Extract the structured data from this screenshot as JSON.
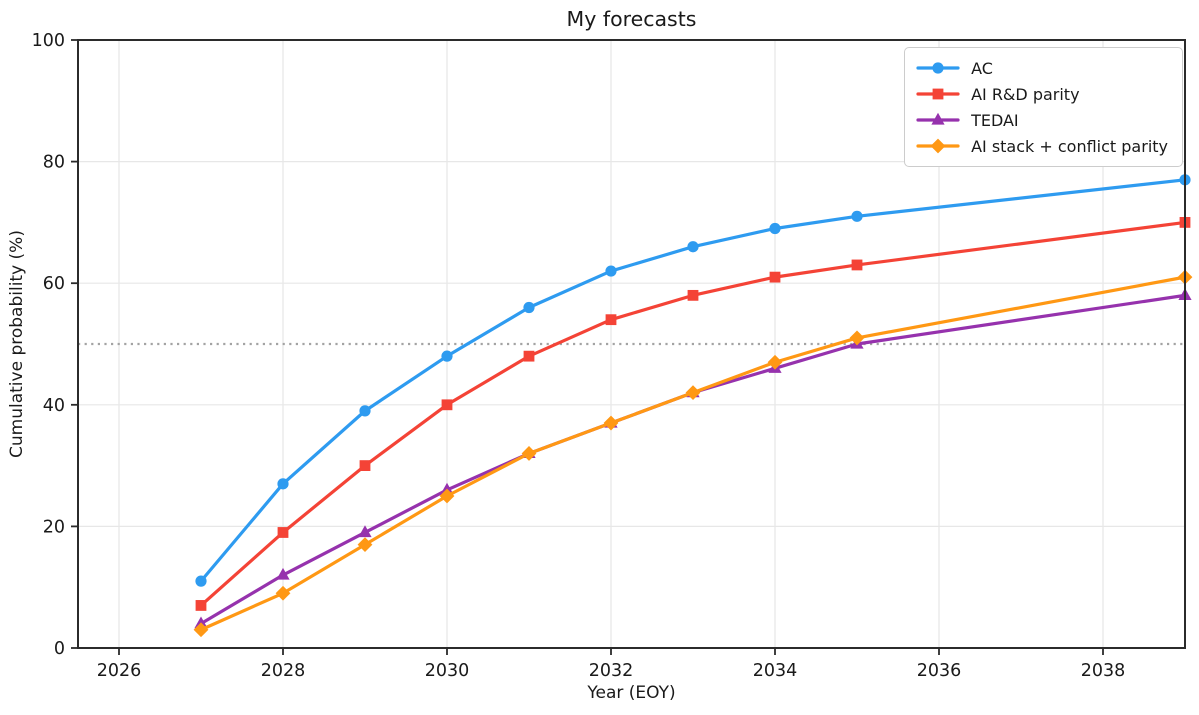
{
  "chart_data": {
    "type": "line",
    "title": "My forecasts",
    "xlabel": "Year (EOY)",
    "ylabel": "Cumulative probability (%)",
    "xlim": [
      2025.5,
      2039.0
    ],
    "ylim": [
      0,
      100
    ],
    "xticks": [
      2026,
      2028,
      2030,
      2032,
      2034,
      2036,
      2038
    ],
    "yticks": [
      0,
      20,
      40,
      60,
      80,
      100
    ],
    "grid": true,
    "grid_color": "#e7e7e7",
    "spine_color": "#2b2b2b",
    "reference_line": {
      "y": 50,
      "style": "dotted",
      "color": "#a3a3a3"
    },
    "legend_position": "top-right",
    "x": [
      2027,
      2028,
      2029,
      2030,
      2031,
      2032,
      2033,
      2034,
      2035,
      2039
    ],
    "series": [
      {
        "name": "AC",
        "color": "#2e9bf0",
        "marker": "circle",
        "values": [
          11,
          27,
          39,
          48,
          56,
          62,
          66,
          69,
          71,
          77
        ]
      },
      {
        "name": "AI R&D parity",
        "color": "#f44336",
        "marker": "square",
        "values": [
          7,
          19,
          30,
          40,
          48,
          54,
          58,
          61,
          63,
          70
        ]
      },
      {
        "name": "TEDAI",
        "color": "#9632ad",
        "marker": "triangle",
        "values": [
          4,
          12,
          19,
          26,
          32,
          37,
          42,
          46,
          50,
          58
        ]
      },
      {
        "name": "AI stack + conflict parity",
        "color": "#ff9814",
        "marker": "diamond",
        "values": [
          3,
          9,
          17,
          25,
          32,
          37,
          42,
          47,
          51,
          61
        ]
      }
    ]
  }
}
